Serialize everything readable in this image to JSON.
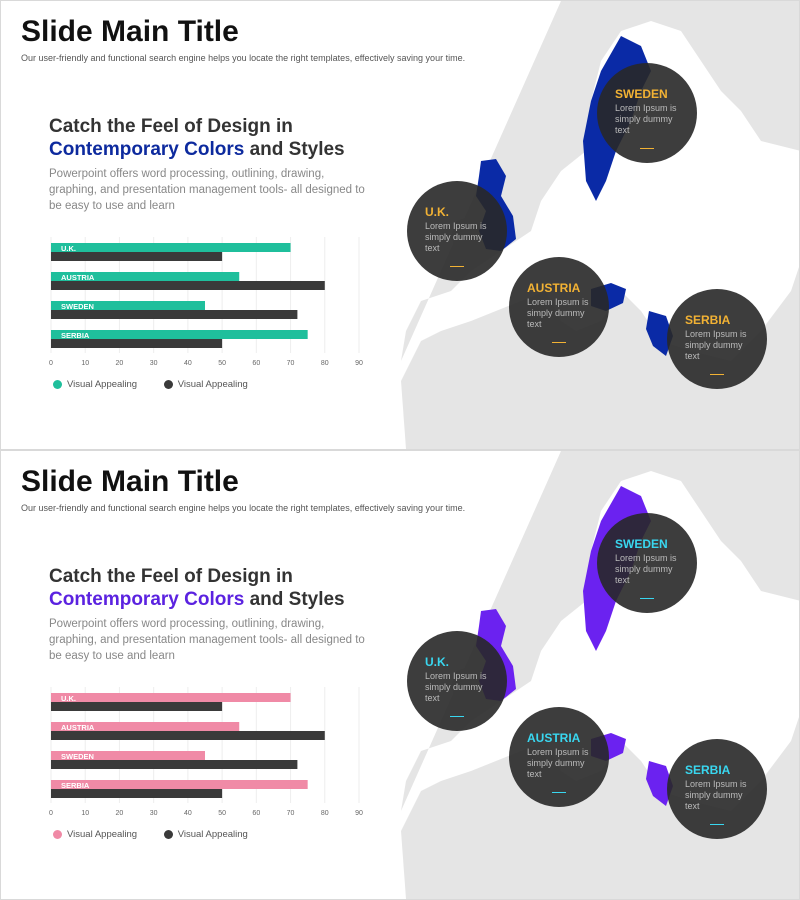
{
  "slides": [
    {
      "title": "Slide Main Title",
      "subtitle": "Our user-friendly and functional search engine helps you locate the right templates, effectively saving your time.",
      "heading_line1": "Catch the Feel of Design in",
      "heading_accent": "Contemporary Colors",
      "heading_rest": " and Styles",
      "paragraph": "Powerpoint offers word processing, outlining, drawing, graphing, and presentation management tools- all designed to be easy to use and learn",
      "colors": {
        "accent": "#0d2a9e",
        "highlight": "#0a2aa6",
        "bar1": "#1fbf9c",
        "bar2": "#3a3a3a",
        "callout_name": "#f2b234"
      },
      "callouts": [
        {
          "name": "SWEDEN",
          "text": "Lorem Ipsum is simply dummy text"
        },
        {
          "name": "U.K.",
          "text": "Lorem Ipsum is simply dummy text"
        },
        {
          "name": "AUSTRIA",
          "text": "Lorem Ipsum is simply dummy text"
        },
        {
          "name": "SERBIA",
          "text": "Lorem Ipsum is simply dummy text"
        }
      ],
      "legend": [
        "Visual Appealing",
        "Visual Appealing"
      ],
      "chart_data": {
        "type": "bar",
        "orientation": "horizontal",
        "categories": [
          "U.K.",
          "AUSTRIA",
          "SWEDEN",
          "SERBIA"
        ],
        "series": [
          {
            "name": "Visual Appealing",
            "values": [
              70,
              55,
              45,
              75
            ]
          },
          {
            "name": "Visual Appealing",
            "values": [
              50,
              80,
              72,
              50
            ]
          }
        ],
        "xticks": [
          0,
          10,
          20,
          30,
          40,
          50,
          60,
          70,
          80,
          90
        ],
        "xlim": [
          0,
          90
        ],
        "grid": true,
        "legend_position": "bottom-left"
      }
    },
    {
      "title": "Slide Main Title",
      "subtitle": "Our user-friendly and functional search engine helps you locate the right templates, effectively saving your time.",
      "heading_line1": "Catch the Feel of Design in",
      "heading_accent": "Contemporary Colors",
      "heading_rest": " and Styles",
      "paragraph": "Powerpoint offers word processing, outlining, drawing, graphing, and presentation management tools- all designed to be easy to use and learn",
      "colors": {
        "accent": "#5b22e0",
        "highlight": "#6b22f0",
        "bar1": "#f08aa6",
        "bar2": "#3a3a3a",
        "callout_name": "#39d7f0"
      },
      "callouts": [
        {
          "name": "SWEDEN",
          "text": "Lorem Ipsum is simply dummy text"
        },
        {
          "name": "U.K.",
          "text": "Lorem Ipsum is simply dummy text"
        },
        {
          "name": "AUSTRIA",
          "text": "Lorem Ipsum is simply dummy text"
        },
        {
          "name": "SERBIA",
          "text": "Lorem Ipsum is simply dummy text"
        }
      ],
      "legend": [
        "Visual Appealing",
        "Visual Appealing"
      ],
      "chart_data": {
        "type": "bar",
        "orientation": "horizontal",
        "categories": [
          "U.K.",
          "AUSTRIA",
          "SWEDEN",
          "SERBIA"
        ],
        "series": [
          {
            "name": "Visual Appealing",
            "values": [
              70,
              55,
              45,
              75
            ]
          },
          {
            "name": "Visual Appealing",
            "values": [
              50,
              80,
              72,
              50
            ]
          }
        ],
        "xticks": [
          0,
          10,
          20,
          30,
          40,
          50,
          60,
          70,
          80,
          90
        ],
        "xlim": [
          0,
          90
        ],
        "grid": true,
        "legend_position": "bottom-left"
      }
    }
  ]
}
